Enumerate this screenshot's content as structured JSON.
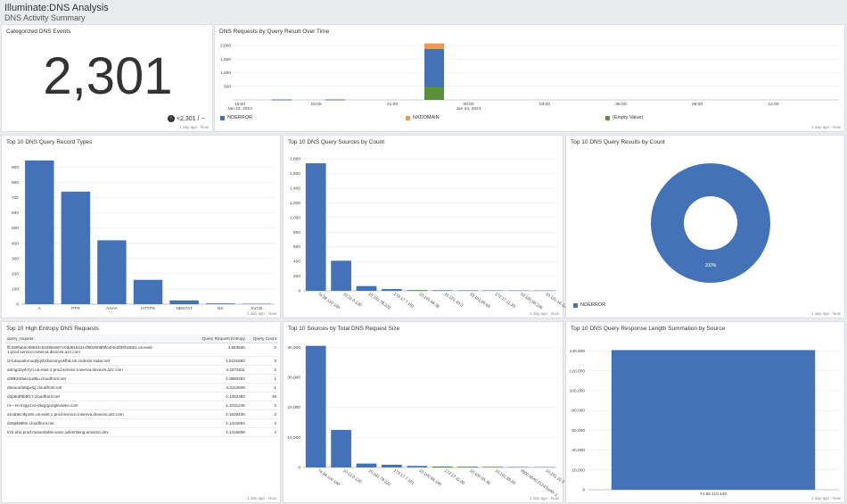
{
  "header": {
    "title": "Illuminate:DNS Analysis",
    "subtitle": "DNS Activity Summary"
  },
  "footer_text": "1 day ago - Now",
  "panels": {
    "events": {
      "title": "Categorized DNS Events",
      "value": "2,301",
      "delta": "+2,301 / --"
    },
    "over_time": {
      "title": "DNS Requests by Query Result Over Time"
    },
    "types": {
      "title": "Top 10 DNS Query Record Types"
    },
    "sources_count": {
      "title": "Top 10 DNS Query Sources by Count"
    },
    "results": {
      "title": "Top 10 DNS Query Results by Count"
    },
    "entropy": {
      "title": "Top 10 High Entropy DNS Requests"
    },
    "size": {
      "title": "Top 10 Sources by Total DNS Request Size"
    },
    "resp_len": {
      "title": "Top 10 DNS Query Response Length Summation by Source"
    }
  },
  "chart_data": [
    {
      "id": "over_time",
      "type": "bar",
      "stacked": true,
      "x_ticks": [
        "15:00",
        "18:00",
        "21:00",
        "00:00",
        "03:00",
        "06:00",
        "09:00",
        "12:00"
      ],
      "x_subticks": [
        "Jan 23, 2024",
        "",
        "",
        "Jan 24, 2024",
        "",
        "",
        "",
        ""
      ],
      "y_ticks": [
        "500",
        "1,000",
        "1,500",
        "2,000"
      ],
      "ylim": [
        0,
        2100
      ],
      "series": [
        {
          "name": "NOERROR",
          "color": "#4472b8"
        },
        {
          "name": "NXDOMAIN",
          "color": "#f59a4a"
        },
        {
          "name": "(Empty Value)",
          "color": "#5a8f3c"
        }
      ],
      "bars": [
        {
          "x": 0.55,
          "values": [
            5,
            0,
            12
          ]
        },
        {
          "x": 1.25,
          "values": [
            5,
            0,
            12
          ]
        },
        {
          "x": 2.55,
          "values": [
            1420,
            200,
            460
          ]
        }
      ]
    },
    {
      "id": "types",
      "type": "bar",
      "categories": [
        "A",
        "PTR",
        "AAAA",
        "HTTPS",
        "NBSTAT",
        "NS",
        "SVCB"
      ],
      "values": [
        945,
        740,
        420,
        160,
        25,
        5,
        3
      ],
      "ylim": [
        0,
        950
      ],
      "y_ticks": [
        0,
        100,
        200,
        300,
        400,
        500,
        600,
        700,
        800,
        900
      ]
    },
    {
      "id": "sources_count",
      "type": "bar",
      "categories": [
        "74.96.110.140",
        "10.11.0.130",
        "10.101.78.232",
        "172.17.7.181",
        "10.100.66.36",
        "10.101.10.3",
        "10.101.89.65",
        "172.17.11.30",
        "10.100.66.236",
        "10.101.16.126"
      ],
      "values": [
        1740,
        410,
        65,
        25,
        10,
        8,
        7,
        6,
        5,
        4
      ],
      "ylim": [
        0,
        1850
      ],
      "y_ticks": [
        0,
        200,
        400,
        600,
        800,
        1000,
        1200,
        1400,
        1600,
        1800
      ],
      "y_tick_labels": [
        "0",
        "200",
        "400",
        "600",
        "800",
        "1,000",
        "1,200",
        "1,400",
        "1,600",
        "1,800"
      ]
    },
    {
      "id": "results",
      "type": "pie",
      "donut": true,
      "categories": [
        "NOERROR"
      ],
      "values": [
        100
      ],
      "labels": [
        "100%"
      ],
      "color": "#4472b8"
    },
    {
      "id": "size",
      "type": "bar",
      "categories": [
        "74.96.110.140",
        "10.11.0.130",
        "10.101.78.232",
        "172.17.7.181",
        "10.100.66.196",
        "172.17.11.30",
        "10.100.65.36",
        "10.101.89.65",
        "2600:4040:2124:ba40::1",
        "10.101.10.3"
      ],
      "values": [
        40500,
        12500,
        1300,
        900,
        500,
        300,
        250,
        200,
        150,
        100
      ],
      "ylim": [
        0,
        41000
      ],
      "y_ticks": [
        0,
        10000,
        20000,
        30000,
        40000
      ],
      "y_tick_labels": [
        "0",
        "10,000",
        "20,000",
        "30,000",
        "40,000"
      ]
    },
    {
      "id": "resp_len",
      "type": "bar",
      "categories": [
        "74.96.110.140"
      ],
      "values": [
        141000
      ],
      "ylim": [
        0,
        145000
      ],
      "y_ticks": [
        0,
        20000,
        40000,
        60000,
        80000,
        100000,
        120000,
        140000
      ],
      "y_tick_labels": [
        "0",
        "20,000",
        "40,000",
        "60,000",
        "80,000",
        "100,000",
        "120,000",
        "140,000"
      ]
    },
    {
      "id": "entropy",
      "type": "table",
      "columns": [
        "query_request",
        "Query Request Entropy",
        "Query Count"
      ],
      "rows": [
        [
          "ffc259fabec69b63c5329be8e7c0dd8151314f902606f9fe4f4e3f39f16561.us-east-1.prod.service.minerva.devices.a2z.com",
          "4.553565",
          "2"
        ],
        [
          "i2-futauadnmxq0jqsbzbeoonyokfhd.init.cedexis-radar.net",
          "4.5191593",
          "3"
        ],
        [
          "a3mgo0yih7yn.us-east-1.prod.service.minerva.devices.a2z.com",
          "4.4072811",
          "2"
        ],
        [
          "d38k2m5eo1u8bu.cloudfront.net",
          "4.3860262",
          "1"
        ],
        [
          "d5eaoofa9gwl1j.cloudfront.net",
          "4.3112608",
          "1"
        ],
        [
          "d3p8rdf8b8f17.cloudfront.net",
          "4.1052383",
          "18"
        ],
        [
          "r4---sn-8vgp1vo-p5qy.googlevideo.com",
          "4.1031245",
          "2"
        ],
        [
          "a1rabkc4kpc9c.us-east-1.prod.service.minerva.devices.a2z.com",
          "4.1626436",
          "2"
        ],
        [
          "d28jel59ltm.cloudfront.net",
          "4.1422654",
          "4"
        ],
        [
          "trck.aho.prod-noiuentable.wosc.advertising.amazon.dev",
          "4.1316808",
          "4"
        ]
      ]
    }
  ]
}
